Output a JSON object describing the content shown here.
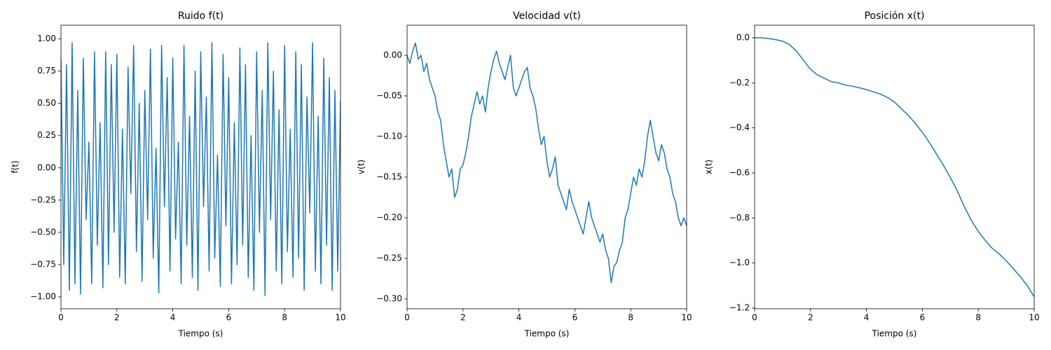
{
  "chart_data": [
    {
      "type": "line",
      "title": "Ruido f(t)",
      "xlabel": "Tiempo (s)",
      "ylabel": "f(t)",
      "color": "#1f77b4",
      "x": [
        0,
        0.1,
        0.2,
        0.3,
        0.4,
        0.5,
        0.6,
        0.7,
        0.8,
        0.9,
        1,
        1.1,
        1.2,
        1.3,
        1.4,
        1.5,
        1.6,
        1.7,
        1.8,
        1.9,
        2,
        2.1,
        2.2,
        2.3,
        2.4,
        2.5,
        2.6,
        2.7,
        2.8,
        2.9,
        3,
        3.1,
        3.2,
        3.3,
        3.4,
        3.5,
        3.6,
        3.7,
        3.8,
        3.9,
        4,
        4.1,
        4.2,
        4.3,
        4.4,
        4.5,
        4.6,
        4.7,
        4.8,
        4.9,
        5,
        5.1,
        5.2,
        5.3,
        5.4,
        5.5,
        5.6,
        5.7,
        5.8,
        5.9,
        6,
        6.1,
        6.2,
        6.3,
        6.4,
        6.5,
        6.6,
        6.7,
        6.8,
        6.9,
        7,
        7.1,
        7.2,
        7.3,
        7.4,
        7.5,
        7.6,
        7.7,
        7.8,
        7.9,
        8,
        8.1,
        8.2,
        8.3,
        8.4,
        8.5,
        8.6,
        8.7,
        8.8,
        8.9,
        9,
        9.1,
        9.2,
        9.3,
        9.4,
        9.5,
        9.6,
        9.7,
        9.8,
        9.9,
        10
      ],
      "values": [
        0.85,
        -0.75,
        0.8,
        -0.95,
        0.97,
        -0.9,
        0.6,
        -0.98,
        0.85,
        -0.4,
        0.2,
        -0.9,
        0.9,
        -0.6,
        0.35,
        -0.93,
        0.9,
        -0.75,
        0.8,
        -0.5,
        0.88,
        -0.85,
        0.3,
        -0.9,
        0.78,
        -0.2,
        0.95,
        -0.65,
        0.5,
        -0.88,
        0.6,
        -0.4,
        0.92,
        -0.7,
        0.15,
        -0.97,
        0.95,
        -0.3,
        0.7,
        -0.8,
        0.85,
        -0.55,
        0.2,
        -0.9,
        0.95,
        -0.6,
        0.4,
        -0.85,
        0.75,
        -0.95,
        0.9,
        -0.3,
        0.55,
        -0.8,
        0.97,
        -0.7,
        0.1,
        -0.92,
        0.88,
        -0.45,
        0.7,
        -0.9,
        0.35,
        -0.75,
        0.93,
        -0.6,
        0.8,
        -0.85,
        0.25,
        -0.95,
        0.9,
        -0.5,
        0.6,
        -0.99,
        0.97,
        -0.4,
        0.75,
        -0.8,
        0.45,
        -0.9,
        0.95,
        -0.65,
        0.3,
        -0.85,
        0.9,
        -0.7,
        0.8,
        -0.95,
        0.55,
        -0.35,
        0.97,
        -0.8,
        0.4,
        -0.9,
        0.85,
        -0.6,
        0.7,
        -0.95,
        0.6,
        -0.8,
        0.52
      ],
      "xlim": [
        0,
        10
      ],
      "ylim": [
        -1.092,
        1.106
      ],
      "xticks": [
        0,
        2,
        4,
        6,
        8,
        10
      ],
      "yticks": [
        {
          "value": -1,
          "label": "−1.00"
        },
        {
          "value": -0.75,
          "label": "−0.75"
        },
        {
          "value": -0.5,
          "label": "−0.50"
        },
        {
          "value": -0.25,
          "label": "−0.25"
        },
        {
          "value": 0,
          "label": "0.00"
        },
        {
          "value": 0.25,
          "label": "0.25"
        },
        {
          "value": 0.5,
          "label": "0.50"
        },
        {
          "value": 0.75,
          "label": "0.75"
        },
        {
          "value": 1,
          "label": "1.00"
        }
      ]
    },
    {
      "type": "line",
      "title": "Velocidad v(t)",
      "xlabel": "Tiempo (s)",
      "ylabel": "v(t)",
      "color": "#1f77b4",
      "x": [
        0,
        0.1,
        0.2,
        0.3,
        0.4,
        0.5,
        0.6,
        0.7,
        0.8,
        0.9,
        1,
        1.1,
        1.2,
        1.3,
        1.4,
        1.5,
        1.6,
        1.7,
        1.8,
        1.9,
        2,
        2.1,
        2.2,
        2.3,
        2.4,
        2.5,
        2.6,
        2.7,
        2.8,
        2.9,
        3,
        3.1,
        3.2,
        3.3,
        3.4,
        3.5,
        3.6,
        3.7,
        3.8,
        3.9,
        4,
        4.1,
        4.2,
        4.3,
        4.4,
        4.5,
        4.6,
        4.7,
        4.8,
        4.9,
        5,
        5.1,
        5.2,
        5.3,
        5.4,
        5.5,
        5.6,
        5.7,
        5.8,
        5.9,
        6,
        6.1,
        6.2,
        6.3,
        6.4,
        6.5,
        6.6,
        6.7,
        6.8,
        6.9,
        7,
        7.1,
        7.2,
        7.3,
        7.4,
        7.5,
        7.6,
        7.7,
        7.8,
        7.9,
        8,
        8.1,
        8.2,
        8.3,
        8.4,
        8.5,
        8.6,
        8.7,
        8.8,
        8.9,
        9,
        9.1,
        9.2,
        9.3,
        9.4,
        9.5,
        9.6,
        9.7,
        9.8,
        9.9,
        10
      ],
      "values": [
        0,
        -0.01,
        0.005,
        0.015,
        -0.005,
        0,
        -0.02,
        -0.01,
        -0.03,
        -0.04,
        -0.05,
        -0.07,
        -0.08,
        -0.11,
        -0.13,
        -0.15,
        -0.14,
        -0.175,
        -0.165,
        -0.14,
        -0.135,
        -0.12,
        -0.1,
        -0.075,
        -0.06,
        -0.045,
        -0.06,
        -0.05,
        -0.07,
        -0.04,
        -0.02,
        -0.005,
        0.005,
        -0.01,
        -0.02,
        -0.03,
        -0.015,
        0,
        -0.04,
        -0.05,
        -0.04,
        -0.03,
        -0.02,
        -0.015,
        -0.04,
        -0.05,
        -0.065,
        -0.09,
        -0.11,
        -0.1,
        -0.13,
        -0.15,
        -0.14,
        -0.125,
        -0.16,
        -0.17,
        -0.18,
        -0.19,
        -0.165,
        -0.18,
        -0.19,
        -0.2,
        -0.21,
        -0.22,
        -0.2,
        -0.18,
        -0.2,
        -0.21,
        -0.22,
        -0.23,
        -0.22,
        -0.24,
        -0.25,
        -0.28,
        -0.26,
        -0.255,
        -0.24,
        -0.23,
        -0.2,
        -0.19,
        -0.17,
        -0.15,
        -0.16,
        -0.14,
        -0.15,
        -0.13,
        -0.1,
        -0.08,
        -0.1,
        -0.12,
        -0.13,
        -0.11,
        -0.12,
        -0.14,
        -0.15,
        -0.17,
        -0.18,
        -0.2,
        -0.21,
        -0.2,
        -0.21
      ],
      "xlim": [
        0,
        10
      ],
      "ylim": [
        -0.312,
        0.037
      ],
      "xticks": [
        0,
        2,
        4,
        6,
        8,
        10
      ],
      "yticks": [
        {
          "value": -0.3,
          "label": "−0.30"
        },
        {
          "value": -0.25,
          "label": "−0.25"
        },
        {
          "value": -0.2,
          "label": "−0.20"
        },
        {
          "value": -0.15,
          "label": "−0.15"
        },
        {
          "value": -0.1,
          "label": "−0.10"
        },
        {
          "value": -0.05,
          "label": "−0.05"
        },
        {
          "value": 0,
          "label": "0.00"
        }
      ]
    },
    {
      "type": "line",
      "title": "Posición x(t)",
      "xlabel": "Tiempo (s)",
      "ylabel": "x(t)",
      "color": "#1f77b4",
      "x": [
        0,
        0.25,
        0.5,
        0.75,
        1,
        1.25,
        1.5,
        1.75,
        2,
        2.25,
        2.5,
        2.75,
        3,
        3.25,
        3.5,
        3.75,
        4,
        4.25,
        4.5,
        4.75,
        5,
        5.25,
        5.5,
        5.75,
        6,
        6.25,
        6.5,
        6.75,
        7,
        7.25,
        7.5,
        7.75,
        8,
        8.25,
        8.5,
        8.75,
        9,
        9.25,
        9.5,
        9.75,
        10
      ],
      "values": [
        0,
        0,
        -0.003,
        -0.008,
        -0.015,
        -0.03,
        -0.06,
        -0.1,
        -0.14,
        -0.165,
        -0.18,
        -0.195,
        -0.2,
        -0.21,
        -0.215,
        -0.222,
        -0.23,
        -0.24,
        -0.25,
        -0.265,
        -0.285,
        -0.315,
        -0.345,
        -0.38,
        -0.42,
        -0.465,
        -0.515,
        -0.565,
        -0.62,
        -0.68,
        -0.75,
        -0.81,
        -0.86,
        -0.9,
        -0.935,
        -0.96,
        -0.99,
        -1.025,
        -1.06,
        -1.1,
        -1.15
      ],
      "xlim": [
        0,
        10
      ],
      "ylim": [
        -1.203,
        0.056
      ],
      "xticks": [
        0,
        2,
        4,
        6,
        8,
        10
      ],
      "yticks": [
        {
          "value": -1.2,
          "label": "−1.2"
        },
        {
          "value": -1,
          "label": "−1.0"
        },
        {
          "value": -0.8,
          "label": "−0.8"
        },
        {
          "value": -0.6,
          "label": "−0.6"
        },
        {
          "value": -0.4,
          "label": "−0.4"
        },
        {
          "value": -0.2,
          "label": "−0.2"
        },
        {
          "value": 0,
          "label": "0.0"
        }
      ]
    }
  ]
}
